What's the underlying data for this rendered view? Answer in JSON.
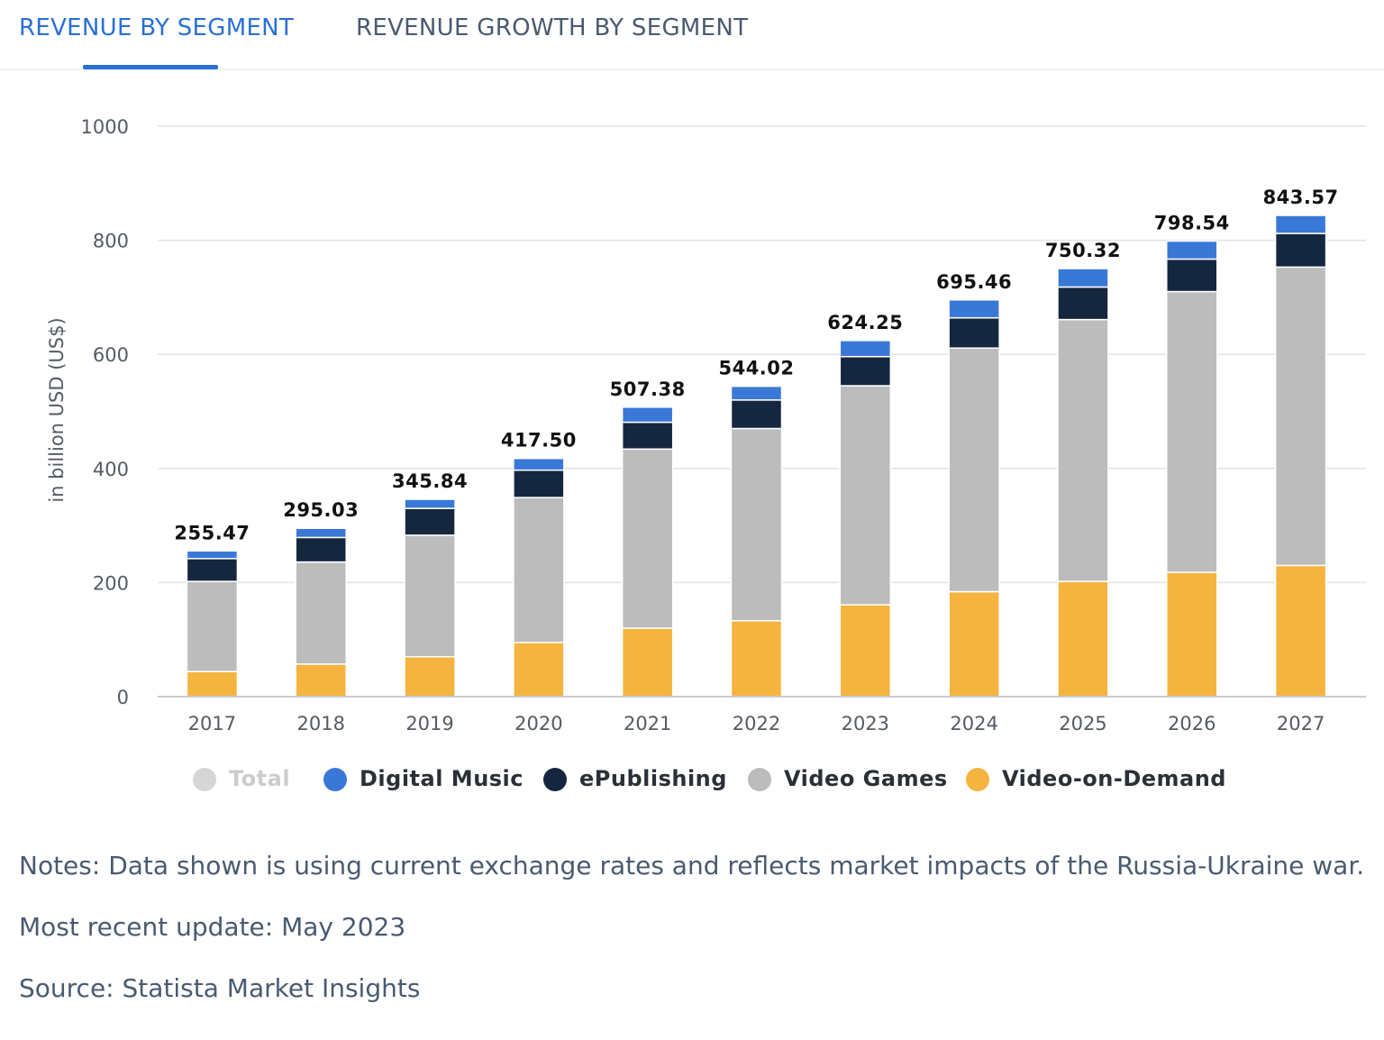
{
  "tabs": [
    {
      "label": "REVENUE BY SEGMENT",
      "active": true
    },
    {
      "label": "REVENUE GROWTH BY SEGMENT",
      "active": false
    }
  ],
  "colors": {
    "tab_active": "#2a6fd6",
    "total": "#d6d6d6",
    "digital_music": "#3a78d8",
    "epublishing": "#15263f",
    "video_games": "#bcbcbc",
    "video_on_demand": "#f5b43f",
    "grid": "#e3e3e3"
  },
  "chart_data": {
    "type": "bar",
    "stacked": true,
    "ylabel": "in billion USD (US$)",
    "xlabel": "",
    "ylim": [
      0,
      1000
    ],
    "yticks": [
      0,
      200,
      400,
      600,
      800,
      1000
    ],
    "categories": [
      "2017",
      "2018",
      "2019",
      "2020",
      "2021",
      "2022",
      "2023",
      "2024",
      "2025",
      "2026",
      "2027"
    ],
    "series": [
      {
        "name": "Video-on-Demand",
        "color_key": "video_on_demand",
        "values": [
          44,
          57,
          70,
          95,
          120,
          133,
          161,
          184,
          202,
          218,
          230
        ]
      },
      {
        "name": "Video Games",
        "color_key": "video_games",
        "values": [
          158,
          179,
          213,
          254,
          314,
          337,
          384,
          427,
          459,
          492,
          523
        ]
      },
      {
        "name": "ePublishing",
        "color_key": "epublishing",
        "values": [
          40,
          43,
          47,
          48,
          47,
          50,
          51,
          53,
          57,
          57,
          59
        ]
      },
      {
        "name": "Digital Music",
        "color_key": "digital_music",
        "values": [
          13.47,
          16.03,
          15.84,
          20.5,
          26.38,
          24.02,
          28.25,
          31.46,
          32.32,
          31.54,
          31.57
        ]
      }
    ],
    "totals": [
      "255.47",
      "295.03",
      "345.84",
      "417.50",
      "507.38",
      "544.02",
      "624.25",
      "695.46",
      "750.32",
      "798.54",
      "843.57"
    ],
    "legend": [
      {
        "name": "Total",
        "color_key": "total",
        "hidden": true
      },
      {
        "name": "Digital Music",
        "color_key": "digital_music",
        "hidden": false
      },
      {
        "name": "ePublishing",
        "color_key": "epublishing",
        "hidden": false
      },
      {
        "name": "Video Games",
        "color_key": "video_games",
        "hidden": false
      },
      {
        "name": "Video-on-Demand",
        "color_key": "video_on_demand",
        "hidden": false
      }
    ]
  },
  "notes": {
    "note": "Notes: Data shown is using current exchange rates and reflects market impacts of the Russia-Ukraine war.",
    "update": "Most recent update: May 2023",
    "source": "Source: Statista Market Insights"
  }
}
